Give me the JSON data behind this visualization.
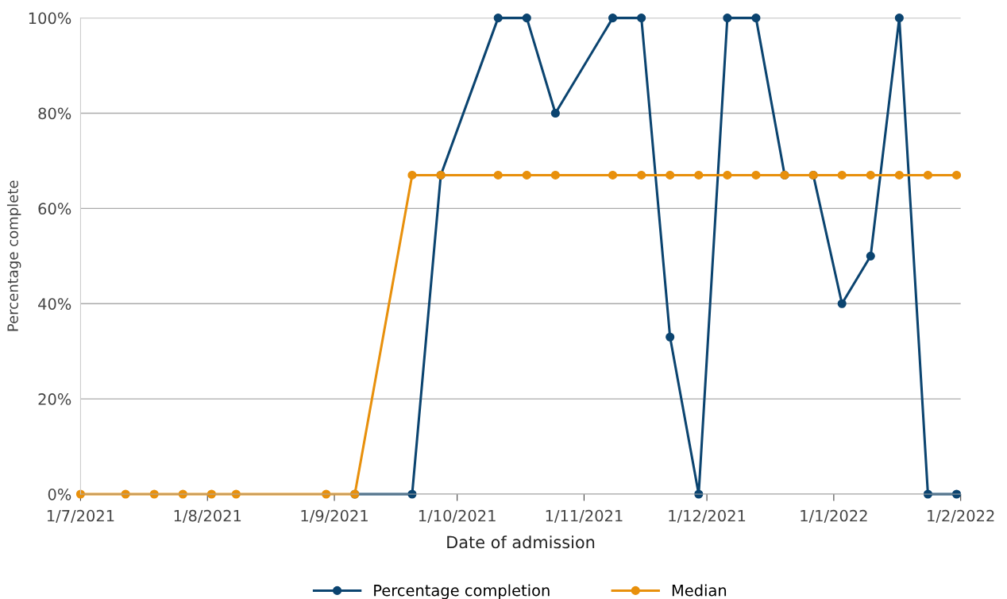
{
  "chart_data": {
    "type": "line",
    "xlabel": "Date of admission",
    "ylabel": "Percentage complete",
    "x": [
      "2021-07-01",
      "2021-07-12",
      "2021-07-19",
      "2021-07-26",
      "2021-08-02",
      "2021-08-08",
      "2021-08-30",
      "2021-09-06",
      "2021-09-20",
      "2021-09-27",
      "2021-10-11",
      "2021-10-18",
      "2021-10-25",
      "2021-11-08",
      "2021-11-15",
      "2021-11-22",
      "2021-11-29",
      "2021-12-06",
      "2021-12-13",
      "2021-12-20",
      "2021-12-27",
      "2022-01-03",
      "2022-01-10",
      "2022-01-17",
      "2022-01-24",
      "2022-01-31"
    ],
    "series": [
      {
        "name": "Percentage completion",
        "color": "#0b4470",
        "values": [
          null,
          null,
          null,
          null,
          null,
          null,
          null,
          0,
          0,
          67,
          100,
          100,
          80,
          100,
          100,
          33,
          0,
          100,
          100,
          67,
          67,
          40,
          50,
          100,
          0,
          0
        ]
      },
      {
        "name": "Median",
        "color": "#e8900c",
        "values": [
          0,
          0,
          0,
          0,
          0,
          0,
          0,
          0,
          67,
          67,
          67,
          67,
          67,
          67,
          67,
          67,
          67,
          67,
          67,
          67,
          67,
          67,
          67,
          67,
          67,
          67
        ]
      }
    ],
    "xlim": [
      "2021-07-01",
      "2022-02-01"
    ],
    "xticks": [
      {
        "value": "2021-07-01",
        "label": "1/7/2021"
      },
      {
        "value": "2021-08-01",
        "label": "1/8/2021"
      },
      {
        "value": "2021-09-01",
        "label": "1/9/2021"
      },
      {
        "value": "2021-10-01",
        "label": "1/10/2021"
      },
      {
        "value": "2021-11-01",
        "label": "1/11/2021"
      },
      {
        "value": "2021-12-01",
        "label": "1/12/2021"
      },
      {
        "value": "2022-01-01",
        "label": "1/1/2022"
      },
      {
        "value": "2022-02-01",
        "label": "1/2/2022"
      }
    ],
    "ylim": [
      0,
      100
    ],
    "yticks": [
      {
        "value": 0,
        "label": "0%"
      },
      {
        "value": 20,
        "label": "20%"
      },
      {
        "value": 40,
        "label": "40%"
      },
      {
        "value": 60,
        "label": "60%"
      },
      {
        "value": 80,
        "label": "80%"
      },
      {
        "value": 100,
        "label": "100%"
      }
    ],
    "grid": "y",
    "legend": "bottom",
    "marker": "circle",
    "line_style": "solid"
  }
}
